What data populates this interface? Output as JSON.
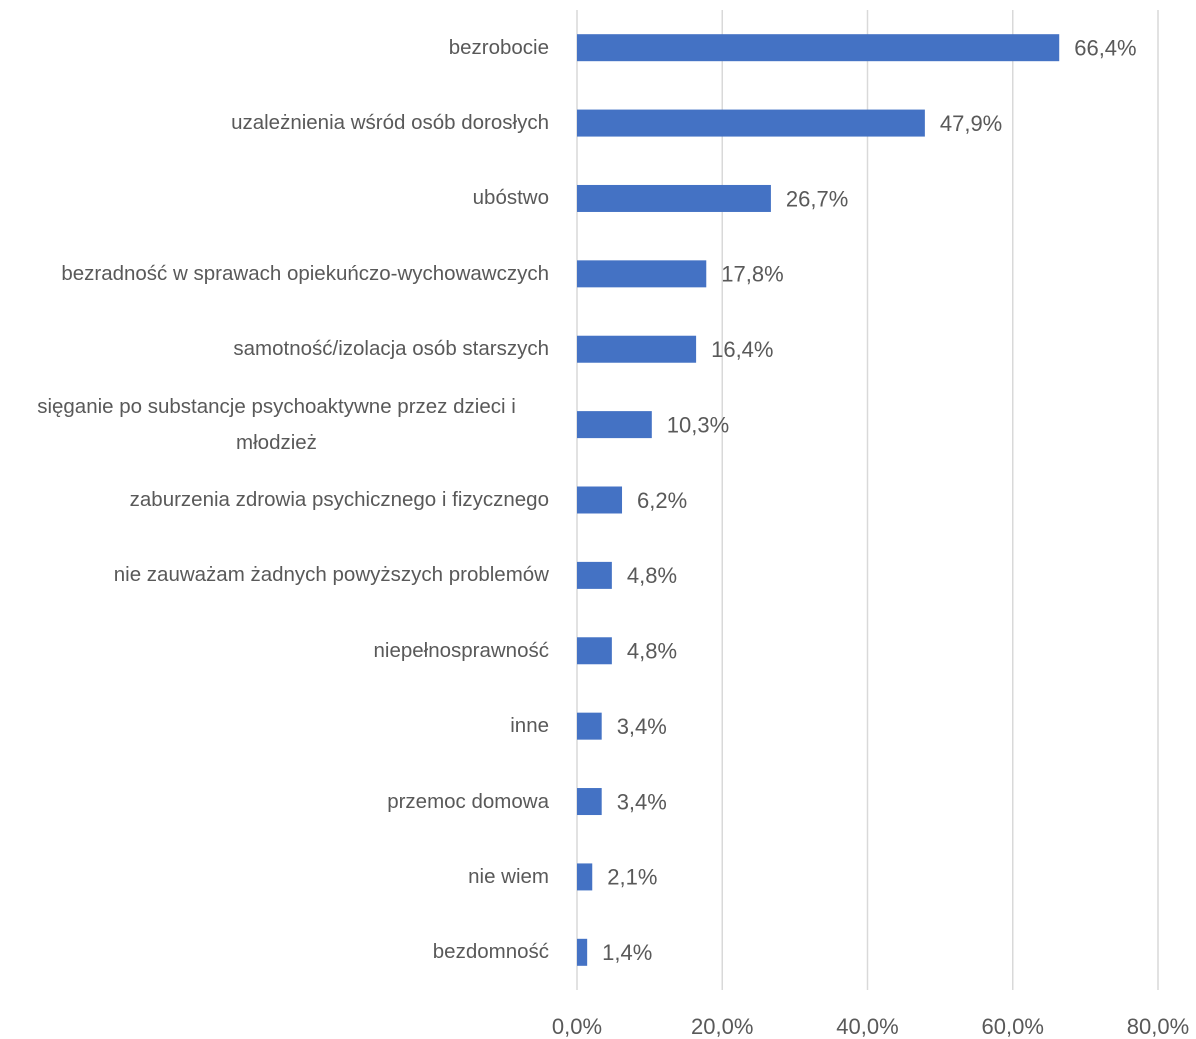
{
  "chart_data": {
    "type": "bar",
    "orientation": "horizontal",
    "categories": [
      "bezrobocie",
      "uzależnienia wśród osób dorosłych",
      "ubóstwo",
      "bezradność w sprawach opiekuńczo-wychowawczych",
      "samotność/izolacja osób starszych",
      "sięganie po substancje psychoaktywne przez dzieci i młodzież",
      "zaburzenia zdrowia psychicznego i fizycznego",
      "nie zauważam żadnych powyższych problemów",
      "niepełnosprawność",
      "inne",
      "przemoc domowa",
      "nie wiem",
      "bezdomność"
    ],
    "values": [
      66.4,
      47.9,
      26.7,
      17.8,
      16.4,
      10.3,
      6.2,
      4.8,
      4.8,
      3.4,
      3.4,
      2.1,
      1.4
    ],
    "value_labels": [
      "66,4%",
      "47,9%",
      "26,7%",
      "17,8%",
      "16,4%",
      "10,3%",
      "6,2%",
      "4,8%",
      "4,8%",
      "3,4%",
      "3,4%",
      "2,1%",
      "1,4%"
    ],
    "color": "#4472c4",
    "xlim": [
      0,
      80
    ],
    "xticks": [
      {
        "value": 0,
        "label": "0,0%"
      },
      {
        "value": 20,
        "label": "20,0%"
      },
      {
        "value": 40,
        "label": "40,0%"
      },
      {
        "value": 60,
        "label": "60,0%"
      },
      {
        "value": 80,
        "label": "80,0%"
      }
    ],
    "grid": true
  }
}
